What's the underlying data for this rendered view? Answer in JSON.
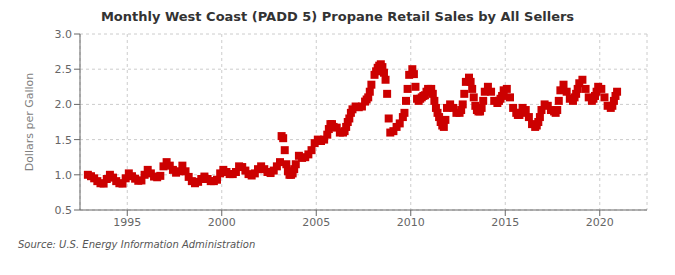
{
  "chart_data": {
    "type": "scatter",
    "title": "Monthly West Coast (PADD 5) Propane Retail Sales by All Sellers",
    "ylabel": "Dollars per Gallon",
    "annotations": [
      "Source: U.S. Energy Information Administration"
    ],
    "color": "#cc0000",
    "marker": "square",
    "grid": true,
    "xlim": [
      1992.5,
      2022.5
    ],
    "ylim": [
      0.5,
      3.0
    ],
    "xticks": [
      1995,
      2000,
      2005,
      2010,
      2015,
      2020
    ],
    "yticks": [
      0.5,
      {
        "value": 1.0,
        "label": "1.0"
      },
      1.5,
      {
        "value": 2.0,
        "label": "2.0"
      },
      2.5,
      {
        "value": 3.0,
        "label": "3.0"
      }
    ],
    "x": [
      1992.917,
      1993.083,
      1993.25,
      1993.417,
      1993.583,
      1993.75,
      1993.917,
      1994.083,
      1994.25,
      1994.417,
      1994.583,
      1994.75,
      1994.917,
      1995.083,
      1995.25,
      1995.417,
      1995.583,
      1995.75,
      1995.917,
      1996.083,
      1996.25,
      1996.417,
      1996.583,
      1996.75,
      1996.917,
      1997.083,
      1997.25,
      1997.417,
      1997.583,
      1997.75,
      1997.917,
      1998.083,
      1998.25,
      1998.417,
      1998.583,
      1998.75,
      1998.917,
      1999.083,
      1999.25,
      1999.417,
      1999.583,
      1999.75,
      1999.917,
      2000.083,
      2000.25,
      2000.417,
      2000.583,
      2000.75,
      2000.917,
      2001.083,
      2001.25,
      2001.417,
      2001.583,
      2001.75,
      2001.917,
      2002.083,
      2002.25,
      2002.417,
      2002.583,
      2002.75,
      2002.917,
      2003.083,
      2003.167,
      2003.25,
      2003.333,
      2003.417,
      2003.5,
      2003.583,
      2003.667,
      2003.75,
      2003.833,
      2003.917,
      2004.083,
      2004.25,
      2004.417,
      2004.583,
      2004.75,
      2004.917,
      2005.083,
      2005.25,
      2005.417,
      2005.583,
      2005.667,
      2005.75,
      2005.833,
      2005.917,
      2006.083,
      2006.25,
      2006.417,
      2006.5,
      2006.583,
      2006.667,
      2006.75,
      2006.833,
      2006.917,
      2007.083,
      2007.25,
      2007.417,
      2007.583,
      2007.667,
      2007.75,
      2007.833,
      2007.917,
      2008.083,
      2008.167,
      2008.25,
      2008.333,
      2008.417,
      2008.5,
      2008.583,
      2008.667,
      2008.75,
      2008.833,
      2008.917,
      2009.083,
      2009.25,
      2009.417,
      2009.583,
      2009.667,
      2009.75,
      2009.833,
      2009.917,
      2010.083,
      2010.167,
      2010.25,
      2010.333,
      2010.417,
      2010.5,
      2010.583,
      2010.667,
      2010.75,
      2010.833,
      2010.917,
      2011.083,
      2011.167,
      2011.25,
      2011.333,
      2011.417,
      2011.5,
      2011.583,
      2011.667,
      2011.75,
      2011.833,
      2011.917,
      2012.083,
      2012.25,
      2012.417,
      2012.583,
      2012.667,
      2012.75,
      2012.833,
      2012.917,
      2013.083,
      2013.167,
      2013.25,
      2013.333,
      2013.417,
      2013.5,
      2013.583,
      2013.667,
      2013.75,
      2013.833,
      2013.917,
      2014.083,
      2014.25,
      2014.417,
      2014.583,
      2014.667,
      2014.75,
      2014.833,
      2014.917,
      2015.083,
      2015.25,
      2015.417,
      2015.583,
      2015.667,
      2015.75,
      2015.833,
      2015.917,
      2016.083,
      2016.25,
      2016.417,
      2016.583,
      2016.667,
      2016.75,
      2016.833,
      2016.917,
      2017.083,
      2017.25,
      2017.417,
      2017.583,
      2017.667,
      2017.75,
      2017.833,
      2017.917,
      2018.083,
      2018.25,
      2018.417,
      2018.583,
      2018.667,
      2018.75,
      2018.833,
      2018.917,
      2019.083,
      2019.25,
      2019.417,
      2019.583,
      2019.667,
      2019.75,
      2019.833,
      2019.917,
      2020.083,
      2020.25,
      2020.417,
      2020.583,
      2020.667,
      2020.75,
      2020.833,
      2020.917
    ],
    "values": [
      1.0,
      0.98,
      0.95,
      0.91,
      0.88,
      0.875,
      0.94,
      1.0,
      0.96,
      0.91,
      0.88,
      0.875,
      0.95,
      1.02,
      0.98,
      0.945,
      0.915,
      0.92,
      1.0,
      1.07,
      1.02,
      0.975,
      0.965,
      0.985,
      1.12,
      1.18,
      1.13,
      1.07,
      1.03,
      1.05,
      1.13,
      1.05,
      0.97,
      0.91,
      0.88,
      0.9,
      0.94,
      0.975,
      0.94,
      0.91,
      0.91,
      0.93,
      1.02,
      1.07,
      1.04,
      1.01,
      1.01,
      1.04,
      1.12,
      1.11,
      1.06,
      1.01,
      0.99,
      1.02,
      1.08,
      1.12,
      1.08,
      1.04,
      1.025,
      1.06,
      1.12,
      1.18,
      1.55,
      1.52,
      1.35,
      1.15,
      1.05,
      1.0,
      1.0,
      1.02,
      1.08,
      1.15,
      1.27,
      1.24,
      1.25,
      1.29,
      1.35,
      1.45,
      1.5,
      1.48,
      1.5,
      1.57,
      1.65,
      1.72,
      1.72,
      1.68,
      1.67,
      1.6,
      1.6,
      1.62,
      1.68,
      1.75,
      1.8,
      1.88,
      1.93,
      1.97,
      1.96,
      1.97,
      2.04,
      2.07,
      2.1,
      2.18,
      2.28,
      2.42,
      2.47,
      2.52,
      2.55,
      2.57,
      2.53,
      2.45,
      2.35,
      2.15,
      1.8,
      1.6,
      1.62,
      1.68,
      1.73,
      1.82,
      1.88,
      2.05,
      2.22,
      2.42,
      2.5,
      2.43,
      2.25,
      2.08,
      2.05,
      2.08,
      2.1,
      2.12,
      2.13,
      2.18,
      2.22,
      2.22,
      2.15,
      2.05,
      1.95,
      1.88,
      1.82,
      1.75,
      1.7,
      1.68,
      1.78,
      1.95,
      2.0,
      1.95,
      1.88,
      1.88,
      1.92,
      2.0,
      2.15,
      2.32,
      2.38,
      2.32,
      2.22,
      2.1,
      1.98,
      1.92,
      1.9,
      1.9,
      1.95,
      2.05,
      2.18,
      2.25,
      2.18,
      2.05,
      2.02,
      2.05,
      2.08,
      2.12,
      2.2,
      2.22,
      2.1,
      1.95,
      1.88,
      1.85,
      1.85,
      1.88,
      1.95,
      1.92,
      1.82,
      1.72,
      1.68,
      1.7,
      1.75,
      1.82,
      1.92,
      2.0,
      1.98,
      1.92,
      1.9,
      1.88,
      1.92,
      2.05,
      2.2,
      2.28,
      2.18,
      2.08,
      2.05,
      2.1,
      2.15,
      2.22,
      2.3,
      2.35,
      2.22,
      2.1,
      2.05,
      2.08,
      2.12,
      2.18,
      2.25,
      2.22,
      2.1,
      1.98,
      1.95,
      1.98,
      2.05,
      2.12,
      2.18
    ]
  }
}
